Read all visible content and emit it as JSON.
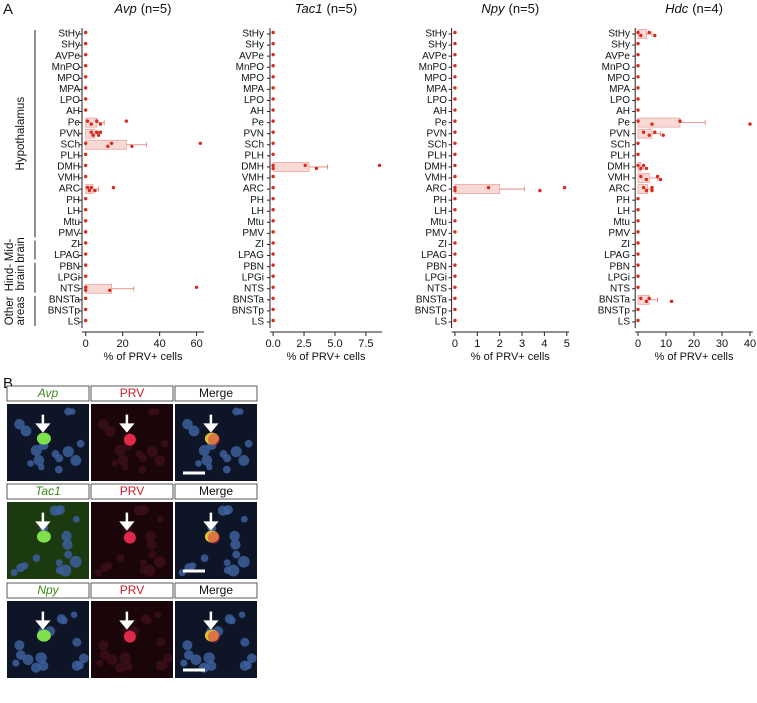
{
  "panel_labels": [
    "A",
    "B"
  ],
  "chart_data": [
    {
      "type": "bar",
      "title": "Avp",
      "n_label": "(n=5)",
      "xlabel": "% of PRV+ cells",
      "groups": [
        [
          "Hypothalamus"
        ],
        [
          "Mid-",
          "brain"
        ],
        [
          "Hind-",
          "brain"
        ],
        [
          "Other",
          "areas"
        ]
      ],
      "categories": [
        "StHy",
        "SHy",
        "AVPe",
        "MnPO",
        "MPO",
        "MPA",
        "LPO",
        "AH",
        "Pe",
        "PVN",
        "SCh",
        "PLH",
        "DMH",
        "VMH",
        "ARC",
        "PH",
        "LH",
        "Mtu",
        "PMV",
        "ZI",
        "LPAG",
        "PBN",
        "LPGi",
        "NTS",
        "BNSTa",
        "BNSTp",
        "LS"
      ],
      "values": [
        0,
        0,
        0,
        0,
        0,
        0,
        0,
        0,
        6,
        5,
        22,
        0,
        0,
        0,
        4,
        0,
        0,
        0,
        0,
        0,
        0,
        0,
        0,
        14,
        0,
        0,
        0
      ],
      "errors": [
        null,
        null,
        null,
        null,
        null,
        null,
        null,
        null,
        4,
        2,
        11,
        null,
        null,
        null,
        3,
        null,
        null,
        null,
        null,
        null,
        null,
        null,
        null,
        12,
        null,
        null,
        null
      ],
      "points": [
        [
          0
        ],
        [
          0
        ],
        [
          0
        ],
        [
          0
        ],
        [
          0
        ],
        [
          0
        ],
        [
          0
        ],
        [
          0
        ],
        [
          1,
          3,
          6,
          8,
          22
        ],
        [
          3,
          4,
          6,
          7,
          8
        ],
        [
          0,
          12,
          14,
          25,
          62
        ],
        [
          0
        ],
        [
          0
        ],
        [
          0
        ],
        [
          1,
          2,
          3,
          5,
          15
        ],
        [
          0
        ],
        [
          0
        ],
        [
          0
        ],
        [
          0
        ],
        [
          0
        ],
        [
          0
        ],
        [
          0
        ],
        [
          0
        ],
        [
          0,
          0,
          0,
          13,
          60
        ],
        [
          0
        ],
        [
          0
        ],
        [
          0
        ]
      ],
      "color": "#d62a1a",
      "xlim": [
        -2,
        64
      ],
      "xticks": [
        0,
        20,
        40,
        60
      ]
    },
    {
      "type": "bar",
      "title": "Tac1",
      "n_label": "(n=5)",
      "xlabel": "% of PRV+ cells",
      "categories": [
        "StHy",
        "SHy",
        "AVPe",
        "MnPO",
        "MPO",
        "MPA",
        "LPO",
        "AH",
        "Pe",
        "PVN",
        "SCh",
        "PLH",
        "DMH",
        "VMH",
        "ARC",
        "PH",
        "LH",
        "Mtu",
        "PMV",
        "ZI",
        "LPAG",
        "PBN",
        "LPGi",
        "NTS",
        "BNSTa",
        "BNSTp",
        "LS"
      ],
      "values": [
        0,
        0,
        0,
        0,
        0,
        0,
        0,
        0,
        0,
        0,
        0,
        0,
        2.9,
        0,
        0,
        0,
        0,
        0,
        0,
        0,
        0,
        0,
        0,
        0,
        0,
        0,
        0
      ],
      "errors": [
        null,
        null,
        null,
        null,
        null,
        null,
        null,
        null,
        null,
        null,
        null,
        null,
        1.5,
        null,
        null,
        null,
        null,
        null,
        null,
        null,
        null,
        null,
        null,
        null,
        null,
        null,
        null
      ],
      "points": [
        [
          0
        ],
        [
          0
        ],
        [
          0
        ],
        [
          0
        ],
        [
          0
        ],
        [
          0
        ],
        [
          0
        ],
        [
          0
        ],
        [
          0
        ],
        [
          0
        ],
        [
          0
        ],
        [
          0
        ],
        [
          0,
          0,
          2.6,
          3.5,
          8.6
        ],
        [
          0
        ],
        [
          0
        ],
        [
          0
        ],
        [
          0
        ],
        [
          0
        ],
        [
          0
        ],
        [
          0
        ],
        [
          0
        ],
        [
          0
        ],
        [
          0
        ],
        [
          0
        ],
        [
          0
        ],
        [
          0
        ],
        [
          0
        ]
      ],
      "color": "#d62a1a",
      "xlim": [
        -0.25,
        8.8
      ],
      "xticks": [
        {
          "value": 0,
          "label": "0.0"
        },
        {
          "value": 2.5,
          "label": "2.5"
        },
        {
          "value": 5,
          "label": "5.0"
        },
        {
          "value": 7.5,
          "label": "7.5"
        }
      ]
    },
    {
      "type": "bar",
      "title": "Npy",
      "n_label": "(n=5)",
      "xlabel": "% of PRV+ cells",
      "categories": [
        "StHy",
        "SHy",
        "AVPe",
        "MnPO",
        "MPO",
        "MPA",
        "LPO",
        "AH",
        "Pe",
        "PVN",
        "SCh",
        "PLH",
        "DMH",
        "VMH",
        "ARC",
        "PH",
        "LH",
        "Mtu",
        "PMV",
        "ZI",
        "LPAG",
        "PBN",
        "LPGi",
        "NTS",
        "BNSTa",
        "BNSTp",
        "LS"
      ],
      "values": [
        0,
        0,
        0,
        0,
        0,
        0,
        0,
        0,
        0,
        0,
        0,
        0,
        0,
        0,
        2,
        0,
        0,
        0,
        0,
        0,
        0,
        0,
        0,
        0,
        0,
        0,
        0
      ],
      "errors": [
        null,
        null,
        null,
        null,
        null,
        null,
        null,
        null,
        null,
        null,
        null,
        null,
        null,
        null,
        1.1,
        null,
        null,
        null,
        null,
        null,
        null,
        null,
        null,
        null,
        null,
        null,
        null
      ],
      "points": [
        [
          0
        ],
        [
          0
        ],
        [
          0
        ],
        [
          0
        ],
        [
          0
        ],
        [
          0
        ],
        [
          0
        ],
        [
          0
        ],
        [
          0
        ],
        [
          0
        ],
        [
          0
        ],
        [
          0
        ],
        [
          0
        ],
        [
          0
        ],
        [
          0,
          0,
          1.5,
          3.8,
          4.9
        ],
        [
          0
        ],
        [
          0
        ],
        [
          0
        ],
        [
          0
        ],
        [
          0
        ],
        [
          0
        ],
        [
          0
        ],
        [
          0
        ],
        [
          0
        ],
        [
          0
        ],
        [
          0
        ],
        [
          0
        ]
      ],
      "color": "#d62a1a",
      "xlim": [
        -0.15,
        5.1
      ],
      "xticks": [
        0,
        1,
        2,
        3,
        4,
        5
      ]
    },
    {
      "type": "bar",
      "title": "Hdc",
      "n_label": "(n=4)",
      "xlabel": "% of PRV+ cells",
      "categories": [
        "StHy",
        "SHy",
        "AVPe",
        "MnPO",
        "MPO",
        "MPA",
        "LPO",
        "AH",
        "Pe",
        "PVN",
        "SCh",
        "PLH",
        "DMH",
        "VMH",
        "ARC",
        "PH",
        "LH",
        "Mtu",
        "PMV",
        "ZI",
        "LPAG",
        "PBN",
        "LPGi",
        "NTS",
        "BNSTa",
        "BNSTp",
        "LS"
      ],
      "values": [
        3,
        0,
        0,
        0,
        0,
        0,
        0,
        0,
        15,
        5,
        0,
        0,
        1,
        4,
        3.5,
        0,
        0,
        0,
        0,
        0,
        0,
        0,
        0,
        0,
        4,
        0,
        0
      ],
      "errors": [
        2,
        null,
        null,
        null,
        null,
        null,
        null,
        null,
        9,
        3,
        null,
        null,
        1,
        3,
        1.5,
        null,
        null,
        null,
        null,
        null,
        null,
        null,
        null,
        null,
        3,
        null,
        null
      ],
      "points": [
        [
          0,
          1,
          4,
          6
        ],
        [
          0
        ],
        [
          0
        ],
        [
          0
        ],
        [
          0
        ],
        [
          0
        ],
        [
          0
        ],
        [
          0
        ],
        [
          0,
          5,
          15,
          40
        ],
        [
          2,
          4,
          6,
          9
        ],
        [
          0
        ],
        [
          0
        ],
        [
          0,
          1,
          2,
          3
        ],
        [
          1,
          3,
          7,
          8
        ],
        [
          2,
          3,
          5,
          5
        ],
        [
          0
        ],
        [
          0
        ],
        [
          0
        ],
        [
          0
        ],
        [
          0
        ],
        [
          0
        ],
        [
          0
        ],
        [
          0
        ],
        [
          0
        ],
        [
          1,
          3,
          4,
          12
        ],
        [
          0
        ],
        [
          0
        ]
      ],
      "color": "#d62a1a",
      "xlim": [
        -1,
        41
      ],
      "xticks": [
        0,
        10,
        20,
        30,
        40
      ]
    }
  ],
  "panel_b_rows": [
    [
      "Avp",
      "PRV",
      "Merge"
    ],
    [
      "Tac1",
      "PRV",
      "Merge"
    ],
    [
      "Npy",
      "PRV",
      "Merge"
    ]
  ]
}
